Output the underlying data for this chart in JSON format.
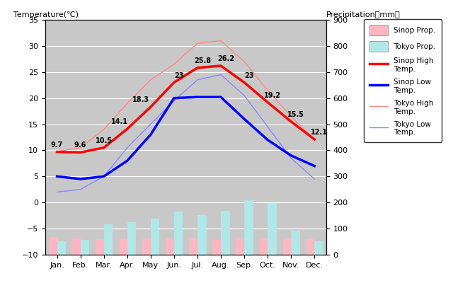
{
  "months": [
    "Jan.",
    "Feb.",
    "Mar.",
    "Apr.",
    "May",
    "Jun.",
    "Jul.",
    "Aug.",
    "Sep.",
    "Oct.",
    "Nov.",
    "Dec."
  ],
  "sinop_high": [
    9.7,
    9.6,
    10.5,
    14.1,
    18.3,
    23.0,
    25.8,
    26.2,
    23.0,
    19.2,
    15.5,
    12.1
  ],
  "sinop_low": [
    5.0,
    4.5,
    5.0,
    8.0,
    13.0,
    20.0,
    20.2,
    20.2,
    16.0,
    12.0,
    9.0,
    7.0
  ],
  "tokyo_high": [
    9.8,
    10.5,
    14.0,
    19.0,
    23.5,
    26.5,
    30.5,
    31.0,
    27.0,
    21.5,
    16.5,
    12.0
  ],
  "tokyo_low": [
    2.0,
    2.5,
    5.0,
    10.5,
    15.0,
    19.5,
    23.5,
    24.5,
    20.5,
    14.5,
    8.5,
    4.5
  ],
  "sinop_precip": [
    69,
    61,
    60,
    62,
    61,
    63,
    61,
    57,
    65,
    61,
    63,
    60
  ],
  "tokyo_precip": [
    52,
    56,
    117,
    125,
    137,
    165,
    153,
    168,
    209,
    197,
    93,
    51
  ],
  "sinop_high_color": "#ff0000",
  "sinop_low_color": "#0000ff",
  "tokyo_high_color": "#ff8888",
  "tokyo_low_color": "#8888ff",
  "sinop_precip_color": "#ffb6c1",
  "tokyo_precip_color": "#b0e8e8",
  "bg_color": "#c8c8c8",
  "temp_ylim": [
    -10,
    35
  ],
  "precip_ylim": [
    0,
    900
  ],
  "temp_yticks": [
    -10,
    -5,
    0,
    5,
    10,
    15,
    20,
    25,
    30,
    35
  ],
  "precip_yticks": [
    0,
    100,
    200,
    300,
    400,
    500,
    600,
    700,
    800,
    900
  ],
  "title_left": "Temperature(℃)",
  "title_right": "Precipitation（mm）",
  "labels": {
    "sinop_high_label": "Sinop High\nTemp.",
    "sinop_low_label": "Sinop Low\nTemp.",
    "tokyo_high_label": "Tokyo High\nTemp.",
    "tokyo_low_label": "Tokyo Low\nTemp.",
    "sinop_precip_label": "Sinop Prop.",
    "tokyo_precip_label": "Tokyo Prop."
  },
  "annot_values": [
    "9.7",
    "9.6",
    "10.5",
    "14.1",
    "18.3",
    "23",
    "25.8",
    "26.2",
    "23",
    "19.2",
    "15.5",
    "12.1"
  ],
  "annot_offsets_x": [
    0,
    0,
    0,
    -8,
    -10,
    5,
    5,
    5,
    5,
    5,
    5,
    5
  ],
  "annot_offsets_y": [
    5,
    5,
    5,
    5,
    5,
    5,
    5,
    5,
    5,
    5,
    5,
    5
  ]
}
